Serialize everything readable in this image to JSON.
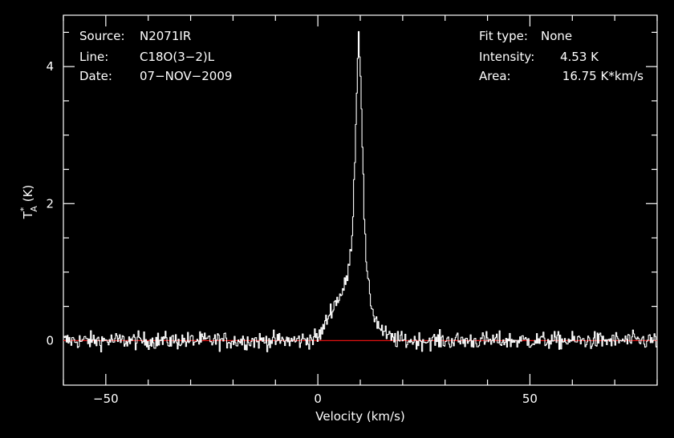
{
  "info": {
    "source_label": "Source:",
    "source_value": "N2071IR",
    "line_label": "Line:",
    "line_value": "C18O(3−2)L",
    "date_label": "Date:",
    "date_value": "07−NOV−2009",
    "fit_label": "Fit type:",
    "fit_value": "None",
    "intensity_label": "Intensity:",
    "intensity_value": "4.53 K",
    "area_label": "Area:",
    "area_value": "16.75 K*km/s"
  },
  "chart_data": {
    "type": "line",
    "title": "",
    "xlabel": "Velocity (km/s)",
    "ylabel_main": "T",
    "ylabel_sup": "*",
    "ylabel_sub": "A",
    "ylabel_unit": " (K)",
    "xlim": [
      -60,
      80
    ],
    "ylim": [
      -0.65,
      4.75
    ],
    "x_ticks": [
      -50,
      0,
      50
    ],
    "x_tick_labels": [
      "−50",
      "0",
      "50"
    ],
    "y_ticks": [
      0,
      2,
      4
    ],
    "y_tick_labels": [
      "0",
      "2",
      "4"
    ],
    "grid": false,
    "colors": {
      "spectrum": "#ffffff",
      "baseline": "#e01010",
      "axes": "#ffffff"
    },
    "series": [
      {
        "x": [
          -60,
          -55,
          -50,
          -45,
          -40,
          -35,
          -30,
          -25,
          -20,
          -15,
          -10,
          -5,
          -2,
          0,
          1,
          2,
          3,
          4,
          5,
          6,
          6.5,
          7,
          7.5,
          8,
          8.5,
          9,
          9.5,
          10,
          10.5,
          11,
          11.5,
          12,
          12.5,
          13,
          14,
          15,
          16,
          17,
          18,
          20,
          25,
          30,
          35,
          40,
          45,
          50,
          55,
          60,
          65,
          70,
          75,
          80
        ],
        "y": [
          0,
          0,
          0,
          0,
          0,
          0,
          0,
          0,
          0,
          0,
          0,
          0,
          0.02,
          0.05,
          0.15,
          0.3,
          0.45,
          0.55,
          0.65,
          0.75,
          0.85,
          1.0,
          1.2,
          1.6,
          2.4,
          3.5,
          4.53,
          3.9,
          2.6,
          1.5,
          0.95,
          0.7,
          0.55,
          0.4,
          0.25,
          0.15,
          0.08,
          0.04,
          0.02,
          0,
          0,
          0,
          0,
          0,
          0,
          0,
          0,
          0,
          0,
          0,
          0,
          0
        ],
        "noise_rms": 0.09
      }
    ]
  }
}
